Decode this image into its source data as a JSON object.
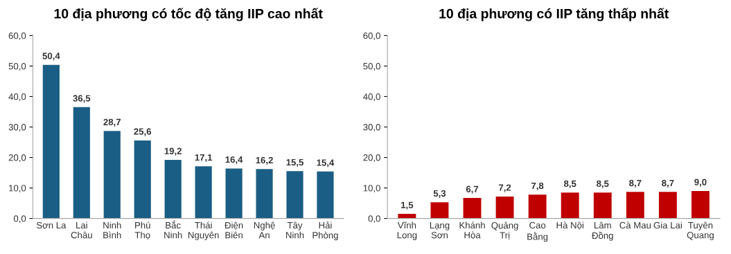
{
  "chart_data": [
    {
      "type": "bar",
      "title": "10 địa phương có tốc độ tăng IIP cao nhất",
      "categories": [
        "Sơn La",
        "Lai\nChâu",
        "Ninh\nBình",
        "Phú\nThọ",
        "Bắc\nNinh",
        "Thái\nNguyên",
        "Điện\nBiên",
        "Nghệ\nAn",
        "Tây\nNinh",
        "Hải\nPhòng"
      ],
      "values": [
        50.4,
        36.5,
        28.7,
        25.6,
        19.2,
        17.1,
        16.4,
        16.2,
        15.5,
        15.4
      ],
      "value_labels": [
        "50,4",
        "36,5",
        "28,7",
        "25,6",
        "19,2",
        "17,1",
        "16,4",
        "16,2",
        "15,5",
        "15,4"
      ],
      "color": "#1b5e85",
      "ylim": [
        0,
        60
      ],
      "yticks": [
        {
          "value": 0,
          "label": "0,0"
        },
        {
          "value": 10,
          "label": "10,0"
        },
        {
          "value": 20,
          "label": "20,0"
        },
        {
          "value": 30,
          "label": "30,0"
        },
        {
          "value": 40,
          "label": "40,0"
        },
        {
          "value": 50,
          "label": "50,0"
        },
        {
          "value": 60,
          "label": "60,0"
        }
      ],
      "grid": false,
      "legend": false
    },
    {
      "type": "bar",
      "title": "10 địa phương có IIP tăng thấp nhất",
      "categories": [
        "Vĩnh\nLong",
        "Lạng\nSơn",
        "Khánh\nHòa",
        "Quảng\nTrị",
        "Cao\nBằng",
        "Hà Nội",
        "Lâm\nĐồng",
        "Cà Mau",
        "Gia Lai",
        "Tuyên\nQuang"
      ],
      "values": [
        1.5,
        5.3,
        6.7,
        7.2,
        7.8,
        8.5,
        8.5,
        8.7,
        8.7,
        9.0
      ],
      "value_labels": [
        "1,5",
        "5,3",
        "6,7",
        "7,2",
        "7,8",
        "8,5",
        "8,5",
        "8,7",
        "8,7",
        "9,0"
      ],
      "color": "#c00000",
      "ylim": [
        0,
        60
      ],
      "yticks": [
        {
          "value": 0,
          "label": "0,0"
        },
        {
          "value": 10,
          "label": "10,0"
        },
        {
          "value": 20,
          "label": "20,0"
        },
        {
          "value": 30,
          "label": "30,0"
        },
        {
          "value": 40,
          "label": "40,0"
        },
        {
          "value": 50,
          "label": "50,0"
        },
        {
          "value": 60,
          "label": "60,0"
        }
      ],
      "grid": false,
      "legend": false
    }
  ]
}
